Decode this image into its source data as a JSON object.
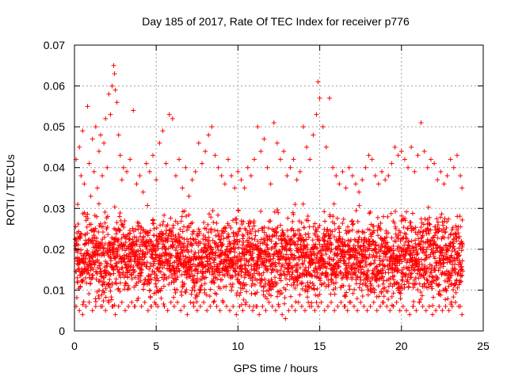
{
  "chart_data": {
    "type": "scatter",
    "title": "Day 185 of 2017, Rate Of TEC Index for receiver p776",
    "xlabel": "GPS time / hours",
    "ylabel": "ROTI / TECUs",
    "xlim": [
      0,
      25
    ],
    "ylim": [
      0,
      0.07
    ],
    "xticks": [
      "0",
      "5",
      "10",
      "15",
      "20",
      "25"
    ],
    "yticks": [
      "0",
      "0.01",
      "0.02",
      "0.03",
      "0.04",
      "0.05",
      "0.06",
      "0.07"
    ],
    "grid": true,
    "marker": "+",
    "color": "#ff0000",
    "series": [
      {
        "x": [
          0.1,
          0.2,
          0.3,
          0.4,
          0.5,
          0.6,
          0.7,
          0.8,
          0.9,
          1.0,
          1.1,
          1.2,
          1.3,
          1.4,
          1.5,
          1.6,
          1.7,
          1.8,
          1.9,
          2.0,
          2.1,
          2.2,
          2.3,
          2.4,
          2.45,
          2.5,
          2.6,
          2.7,
          2.8,
          2.9,
          3.0,
          3.2,
          3.4,
          3.6,
          3.8,
          4.0,
          4.2,
          4.4,
          4.6,
          4.8,
          5.0,
          5.2,
          5.4,
          5.6,
          5.8,
          6.0,
          6.2,
          6.4,
          6.6,
          6.8,
          7.0,
          7.2,
          7.4,
          7.6,
          7.8,
          8.0,
          8.2,
          8.4,
          8.6,
          8.8,
          9.0,
          9.2,
          9.4,
          9.6,
          9.8,
          10.0,
          10.2,
          10.4,
          10.6,
          10.8,
          11.0,
          11.2,
          11.4,
          11.6,
          11.8,
          12.0,
          12.2,
          12.4,
          12.6,
          12.8,
          13.0,
          13.2,
          13.4,
          13.6,
          13.8,
          14.0,
          14.2,
          14.4,
          14.6,
          14.8,
          14.9,
          15.0,
          15.2,
          15.4,
          15.6,
          15.8,
          16.0,
          16.2,
          16.4,
          16.6,
          16.8,
          17.0,
          17.2,
          17.4,
          17.6,
          17.8,
          18.0,
          18.2,
          18.4,
          18.6,
          18.8,
          19.0,
          19.2,
          19.4,
          19.6,
          19.8,
          20.0,
          20.2,
          20.4,
          20.6,
          20.8,
          21.0,
          21.2,
          21.4,
          21.6,
          21.8,
          22.0,
          22.2,
          22.4,
          22.6,
          22.8,
          23.0,
          23.2,
          23.4,
          23.6,
          23.7
        ],
        "y": [
          0.042,
          0.031,
          0.045,
          0.038,
          0.049,
          0.036,
          0.028,
          0.055,
          0.041,
          0.033,
          0.047,
          0.039,
          0.05,
          0.035,
          0.044,
          0.048,
          0.038,
          0.046,
          0.052,
          0.04,
          0.058,
          0.053,
          0.06,
          0.065,
          0.063,
          0.059,
          0.056,
          0.048,
          0.043,
          0.037,
          0.04,
          0.039,
          0.042,
          0.054,
          0.036,
          0.038,
          0.034,
          0.041,
          0.039,
          0.043,
          0.037,
          0.046,
          0.049,
          0.041,
          0.053,
          0.052,
          0.038,
          0.042,
          0.035,
          0.04,
          0.033,
          0.037,
          0.039,
          0.046,
          0.041,
          0.044,
          0.048,
          0.05,
          0.043,
          0.04,
          0.038,
          0.036,
          0.042,
          0.038,
          0.035,
          0.039,
          0.037,
          0.035,
          0.04,
          0.038,
          0.042,
          0.05,
          0.044,
          0.047,
          0.04,
          0.036,
          0.051,
          0.046,
          0.042,
          0.044,
          0.038,
          0.04,
          0.042,
          0.037,
          0.039,
          0.05,
          0.045,
          0.042,
          0.048,
          0.053,
          0.061,
          0.057,
          0.05,
          0.045,
          0.057,
          0.04,
          0.038,
          0.036,
          0.039,
          0.035,
          0.04,
          0.038,
          0.036,
          0.034,
          0.037,
          0.04,
          0.043,
          0.042,
          0.038,
          0.036,
          0.039,
          0.037,
          0.038,
          0.041,
          0.045,
          0.043,
          0.044,
          0.042,
          0.04,
          0.045,
          0.039,
          0.043,
          0.051,
          0.044,
          0.04,
          0.042,
          0.041,
          0.037,
          0.039,
          0.036,
          0.038,
          0.042,
          0.04,
          0.043,
          0.038,
          0.035
        ]
      },
      {
        "x": [
          0.1,
          0.3,
          0.5,
          0.7,
          0.9,
          1.1,
          1.3,
          1.5,
          1.7,
          1.9,
          2.1,
          2.3,
          2.5,
          2.7,
          2.9,
          3.1,
          3.3,
          3.5,
          3.7,
          3.9,
          4.1,
          4.3,
          4.5,
          4.7,
          4.9,
          5.1,
          5.3,
          5.5,
          5.7,
          5.9,
          6.1,
          6.3,
          6.5,
          6.7,
          6.9,
          7.1,
          7.3,
          7.5,
          7.7,
          7.9,
          8.1,
          8.3,
          8.5,
          8.7,
          8.9,
          9.1,
          9.3,
          9.5,
          9.7,
          9.9,
          10.1,
          10.3,
          10.5,
          10.7,
          10.9,
          11.1,
          11.3,
          11.5,
          11.7,
          11.9,
          12.1,
          12.3,
          12.5,
          12.7,
          12.9,
          13.1,
          13.3,
          13.5,
          13.7,
          13.9,
          14.1,
          14.3,
          14.5,
          14.7,
          14.9,
          15.1,
          15.3,
          15.5,
          15.7,
          15.9,
          16.1,
          16.3,
          16.5,
          16.7,
          16.9,
          17.1,
          17.3,
          17.5,
          17.7,
          17.9,
          18.1,
          18.3,
          18.5,
          18.7,
          18.9,
          19.1,
          19.3,
          19.5,
          19.7,
          19.9,
          20.1,
          20.3,
          20.5,
          20.7,
          20.9,
          21.1,
          21.3,
          21.5,
          21.7,
          21.9,
          22.1,
          22.3,
          22.5,
          22.7,
          22.9,
          23.1,
          23.3,
          23.5,
          23.7
        ],
        "y": [
          0.006,
          0.005,
          0.004,
          0.006,
          0.007,
          0.005,
          0.006,
          0.008,
          0.006,
          0.005,
          0.007,
          0.006,
          0.004,
          0.006,
          0.007,
          0.005,
          0.006,
          0.007,
          0.006,
          0.008,
          0.006,
          0.007,
          0.005,
          0.006,
          0.007,
          0.006,
          0.008,
          0.006,
          0.005,
          0.007,
          0.006,
          0.007,
          0.005,
          0.006,
          0.004,
          0.007,
          0.006,
          0.005,
          0.006,
          0.007,
          0.005,
          0.006,
          0.007,
          0.006,
          0.005,
          0.007,
          0.006,
          0.005,
          0.006,
          0.004,
          0.006,
          0.005,
          0.007,
          0.006,
          0.005,
          0.006,
          0.004,
          0.006,
          0.005,
          0.007,
          0.006,
          0.005,
          0.006,
          0.004,
          0.003,
          0.005,
          0.006,
          0.005,
          0.007,
          0.006,
          0.005,
          0.007,
          0.006,
          0.005,
          0.006,
          0.007,
          0.005,
          0.006,
          0.007,
          0.005,
          0.006,
          0.007,
          0.006,
          0.005,
          0.007,
          0.006,
          0.005,
          0.007,
          0.006,
          0.005,
          0.006,
          0.007,
          0.005,
          0.006,
          0.007,
          0.006,
          0.005,
          0.006,
          0.007,
          0.005,
          0.006,
          0.005,
          0.004,
          0.006,
          0.005,
          0.007,
          0.006,
          0.005,
          0.006,
          0.004,
          0.005,
          0.006,
          0.005,
          0.006,
          0.005,
          0.006,
          0.007,
          0.006,
          0.004
        ]
      }
    ],
    "bulk_band": {
      "description_free": true,
      "x_start": 0.05,
      "x_end": 23.75,
      "y_center": 0.018,
      "y_spread": 0.008,
      "y_min": 0.006,
      "y_max": 0.034
    }
  }
}
